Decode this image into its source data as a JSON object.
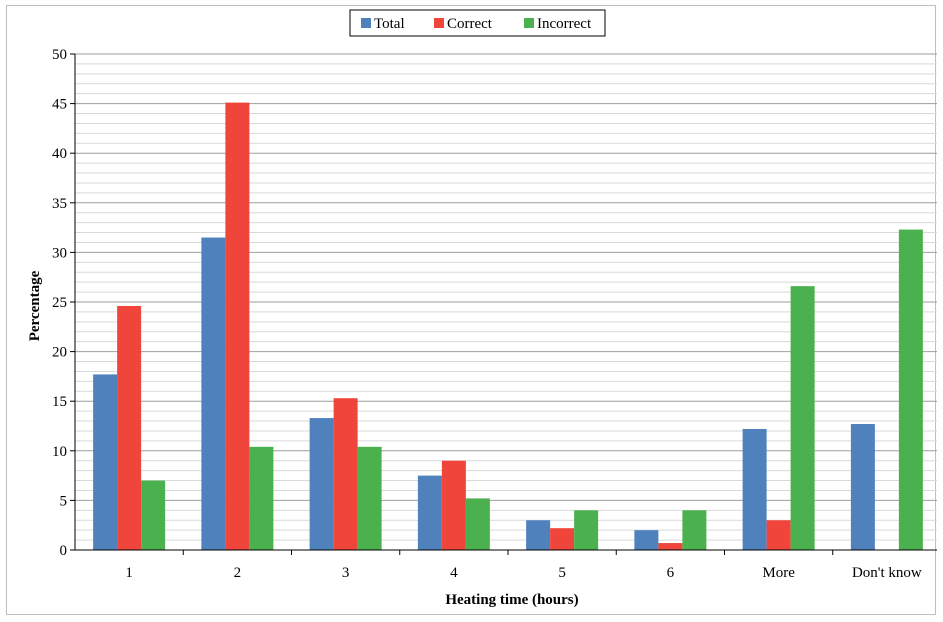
{
  "chart_data": {
    "type": "bar",
    "title": "",
    "xlabel": "Heating time (hours)",
    "ylabel": "Percentage",
    "ylim": [
      0,
      50
    ],
    "y_major_ticks": [
      0,
      5,
      10,
      15,
      20,
      25,
      30,
      35,
      40,
      45,
      50
    ],
    "y_minor_step": 1,
    "grid": true,
    "legend_position": "top-center",
    "categories": [
      "1",
      "2",
      "3",
      "4",
      "5",
      "6",
      "More",
      "Don't know"
    ],
    "series": [
      {
        "name": "Total",
        "color": "#4f81bd",
        "values": [
          17.7,
          31.5,
          13.3,
          7.5,
          3.0,
          2.0,
          12.2,
          12.7
        ]
      },
      {
        "name": "Correct",
        "color": "#f0453a",
        "values": [
          24.6,
          45.1,
          15.3,
          9.0,
          2.2,
          0.7,
          3.0,
          0
        ]
      },
      {
        "name": "Incorrect",
        "color": "#4bb14f",
        "values": [
          7.0,
          10.4,
          10.4,
          5.2,
          4.0,
          4.0,
          26.6,
          32.3
        ]
      }
    ]
  }
}
